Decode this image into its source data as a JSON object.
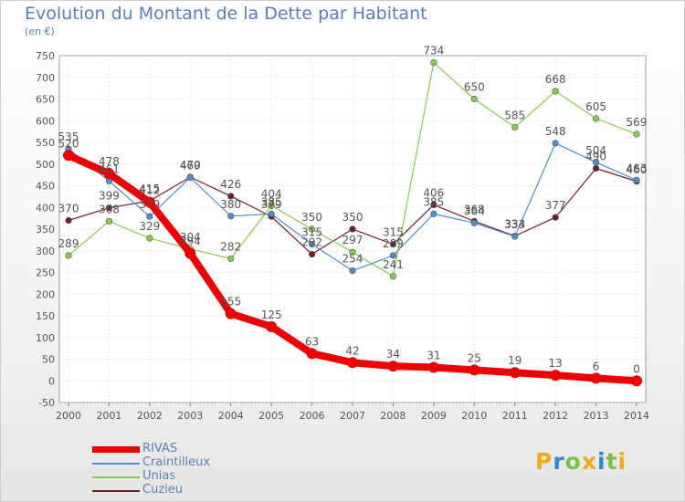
{
  "title": "Evolution du Montant de la Dette par Habitant",
  "unit": "(en €)",
  "logo_text": "Proxiti",
  "colors": {
    "RIVAS": "#ee0000",
    "Craintilleux": "#4f8fcb",
    "Unias": "#88cc4c",
    "Cuzieu": "#6e1f2a",
    "axis_text": "#555555",
    "title": "#5a7eb8"
  },
  "chart_data": {
    "type": "line",
    "title": "Evolution du Montant de la Dette par Habitant",
    "ylabel": "(en €)",
    "xlabel": "",
    "x": [
      "2000",
      "2001",
      "2002",
      "2003",
      "2004",
      "2005",
      "2006",
      "2007",
      "2008",
      "2009",
      "2010",
      "2011",
      "2012",
      "2013",
      "2014"
    ],
    "ylim": [
      -50,
      750
    ],
    "yticks": [
      "-50",
      "0",
      "50",
      "100",
      "150",
      "200",
      "250",
      "300",
      "350",
      "400",
      "450",
      "500",
      "550",
      "600",
      "650",
      "700",
      "750"
    ],
    "grid": true,
    "legend": "bottom-left",
    "series": [
      {
        "name": "RIVAS",
        "values": [
          520,
          478,
          412,
          294,
          155,
          125,
          63,
          42,
          34,
          31,
          25,
          19,
          13,
          6,
          0
        ],
        "labels": [
          "520",
          "478",
          "412",
          "294",
          "155",
          "125",
          "63",
          "42",
          "34",
          "31",
          "25",
          "19",
          "13",
          "6",
          "0"
        ]
      },
      {
        "name": "Craintilleux",
        "values": [
          535,
          461,
          379,
          469,
          380,
          385,
          315,
          254,
          289,
          385,
          364,
          333,
          548,
          504,
          463
        ],
        "labels": [
          "535",
          "461",
          "379",
          "469",
          "380",
          "385",
          "315",
          "254",
          "289",
          "385",
          "364",
          "333",
          "548",
          "504",
          "463"
        ]
      },
      {
        "name": "Unias",
        "values": [
          289,
          368,
          329,
          304,
          282,
          404,
          350,
          297,
          241,
          734,
          650,
          585,
          668,
          605,
          569
        ],
        "labels": [
          "289",
          "368",
          "329",
          "304",
          "282",
          "404",
          "350",
          "297",
          "241",
          "734",
          "650",
          "585",
          "668",
          "605",
          "569"
        ]
      },
      {
        "name": "Cuzieu",
        "values": [
          370,
          399,
          415,
          470,
          426,
          379,
          292,
          350,
          315,
          406,
          368,
          334,
          377,
          490,
          460
        ],
        "labels": [
          "370",
          "399",
          "415",
          "470",
          "426",
          "379",
          "292",
          "350",
          "315",
          "406",
          "368",
          "334",
          "377",
          "490",
          "460"
        ]
      }
    ]
  },
  "legend": [
    {
      "label": "RIVAS"
    },
    {
      "label": "Craintilleux"
    },
    {
      "label": "Unias"
    },
    {
      "label": "Cuzieu"
    }
  ]
}
